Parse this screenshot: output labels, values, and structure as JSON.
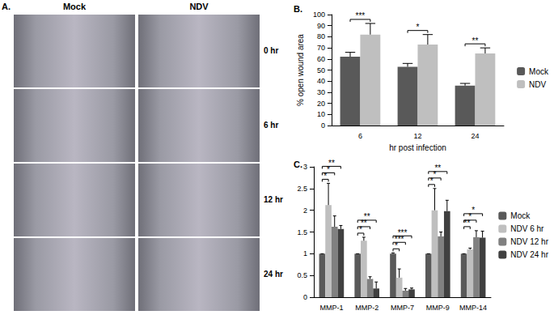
{
  "image_panel": {
    "label": "A.",
    "columns": [
      "Mock",
      "NDV"
    ],
    "rows": [
      "0 hr",
      "6 hr",
      "12 hr",
      "24 hr"
    ]
  },
  "chart_data": [
    {
      "type": "bar",
      "title": "B.",
      "x_label": "hr post infection",
      "y_label": "% open wound area",
      "categories": [
        "6",
        "12",
        "24"
      ],
      "series": [
        {
          "name": "Mock",
          "color": "#595959",
          "values": [
            62,
            53,
            36
          ],
          "errors": [
            4,
            3,
            2
          ]
        },
        {
          "name": "NDV",
          "color": "#bfbfbf",
          "values": [
            82,
            73,
            65
          ],
          "errors": [
            10,
            9,
            5
          ]
        }
      ],
      "ylim": [
        0,
        100
      ],
      "yticks": [
        0,
        10,
        20,
        30,
        40,
        50,
        60,
        70,
        80,
        90,
        100
      ],
      "grid": false,
      "legend": "right",
      "annotations": [
        {
          "category": "6",
          "from": "Mock",
          "to": "NDV",
          "label": "***"
        },
        {
          "category": "12",
          "from": "Mock",
          "to": "NDV",
          "label": "*"
        },
        {
          "category": "24",
          "from": "Mock",
          "to": "NDV",
          "label": "**"
        }
      ]
    },
    {
      "type": "bar",
      "title": "C.",
      "categories": [
        "MMP-1",
        "MMP-2",
        "MMP-7",
        "MMP-9",
        "MMP-14"
      ],
      "series": [
        {
          "name": "Mock",
          "color": "#595959",
          "values": [
            1,
            1,
            1,
            1,
            1
          ],
          "errors": [
            0,
            0,
            0.02,
            0,
            0
          ]
        },
        {
          "name": "NDV 6 hr",
          "color": "#bfbfbf",
          "values": [
            2.12,
            1.3,
            0.45,
            2.0,
            1.1
          ],
          "errors": [
            0.5,
            0.08,
            0.2,
            0.5,
            0.03
          ]
        },
        {
          "name": "NDV 12 hr",
          "color": "#808080",
          "values": [
            1.62,
            0.42,
            0.15,
            1.4,
            1.38
          ],
          "errors": [
            0.25,
            0.05,
            0.05,
            0.1,
            0.15
          ]
        },
        {
          "name": "NDV 24 hr",
          "color": "#404040",
          "values": [
            1.57,
            0.2,
            0.18,
            1.98,
            1.37
          ],
          "errors": [
            0.08,
            0.15,
            0.03,
            0.25,
            0.15
          ]
        }
      ],
      "ylim": [
        0,
        3
      ],
      "yticks": [
        0,
        0.5,
        1,
        1.5,
        2,
        2.5,
        3
      ],
      "grid": false,
      "legend": "right",
      "annotations": [
        {
          "category": "MMP-1",
          "from": "Mock",
          "to": "NDV 6 hr",
          "label": "*"
        },
        {
          "category": "MMP-1",
          "from": "Mock",
          "to": "NDV 12 hr",
          "label": "*"
        },
        {
          "category": "MMP-1",
          "from": "Mock",
          "to": "NDV 24 hr",
          "label": "**"
        },
        {
          "category": "MMP-2",
          "from": "Mock",
          "to": "NDV 6 hr",
          "label": "*"
        },
        {
          "category": "MMP-2",
          "from": "Mock",
          "to": "NDV 12 hr",
          "label": "**"
        },
        {
          "category": "MMP-2",
          "from": "Mock",
          "to": "NDV 24 hr",
          "label": "**"
        },
        {
          "category": "MMP-7",
          "from": "Mock",
          "to": "NDV 6 hr",
          "label": "*"
        },
        {
          "category": "MMP-7",
          "from": "Mock",
          "to": "NDV 12 hr",
          "label": "***"
        },
        {
          "category": "MMP-7",
          "from": "Mock",
          "to": "NDV 24 hr",
          "label": "***"
        },
        {
          "category": "MMP-9",
          "from": "Mock",
          "to": "NDV 6 hr",
          "label": "*"
        },
        {
          "category": "MMP-9",
          "from": "Mock",
          "to": "NDV 12 hr",
          "label": "*"
        },
        {
          "category": "MMP-9",
          "from": "Mock",
          "to": "NDV 24 hr",
          "label": "**"
        },
        {
          "category": "MMP-14",
          "from": "Mock",
          "to": "NDV 6 hr",
          "label": "**"
        },
        {
          "category": "MMP-14",
          "from": "Mock",
          "to": "NDV 12 hr",
          "label": "*"
        },
        {
          "category": "MMP-14",
          "from": "Mock",
          "to": "NDV 24 hr",
          "label": "*"
        }
      ]
    }
  ]
}
